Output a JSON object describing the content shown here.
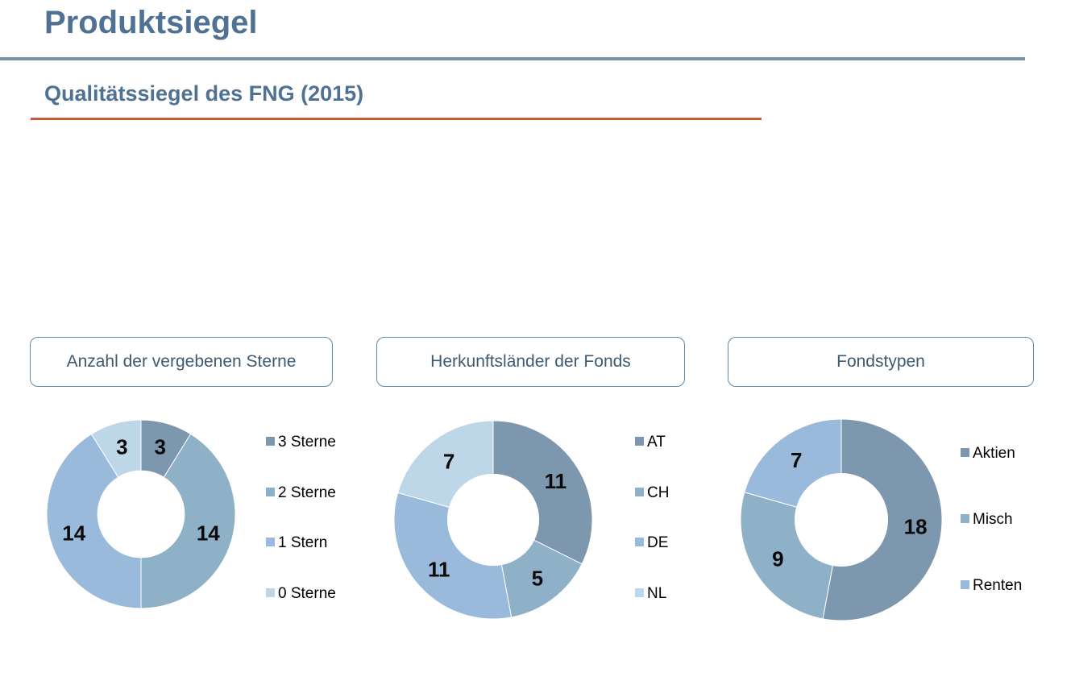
{
  "header": {
    "title": "Produktsiegel",
    "subtitle": "Qualitätssiegel des FNG (2015)"
  },
  "colors": {
    "heading_text": "#4F7294",
    "title_rule": "#7892A7",
    "section_rule": "#C75B39",
    "box_border": "#6089AC",
    "box_text": "#3C5B73",
    "data_label_text": "#0a0a0a",
    "palette": [
      "#7D97AF",
      "#8FB1C7",
      "#99BADB",
      "#BDD7E9"
    ]
  },
  "chart_data": [
    {
      "type": "pie",
      "variant": "donut",
      "title": "Anzahl der vergebenen Sterne",
      "categories": [
        "3 Sterne",
        "2 Sterne",
        "1 Stern",
        "0 Sterne"
      ],
      "values": [
        3,
        14,
        14,
        3
      ],
      "colors": [
        "#7D97AF",
        "#8FB1C7",
        "#99BADB",
        "#BDD7E9"
      ],
      "total": 34,
      "start_angle_deg": 0,
      "direction": "clockwise",
      "data_labels": true,
      "legend_position": "right"
    },
    {
      "type": "pie",
      "variant": "donut",
      "title": "Herkunftsländer der Fonds",
      "categories": [
        "AT",
        "CH",
        "DE",
        "NL"
      ],
      "values": [
        11,
        5,
        11,
        7
      ],
      "colors": [
        "#7D97AF",
        "#8FB1C7",
        "#99BADB",
        "#BDD7E9"
      ],
      "total": 34,
      "start_angle_deg": 0,
      "direction": "clockwise",
      "data_labels": true,
      "legend_position": "right"
    },
    {
      "type": "pie",
      "variant": "donut",
      "title": "Fondstypen",
      "categories": [
        "Aktien",
        "Misch",
        "Renten"
      ],
      "values": [
        18,
        9,
        7
      ],
      "colors": [
        "#7D97AF",
        "#8FB1C7",
        "#99BADB"
      ],
      "total": 34,
      "start_angle_deg": 0,
      "direction": "clockwise",
      "data_labels": true,
      "legend_position": "right"
    }
  ]
}
